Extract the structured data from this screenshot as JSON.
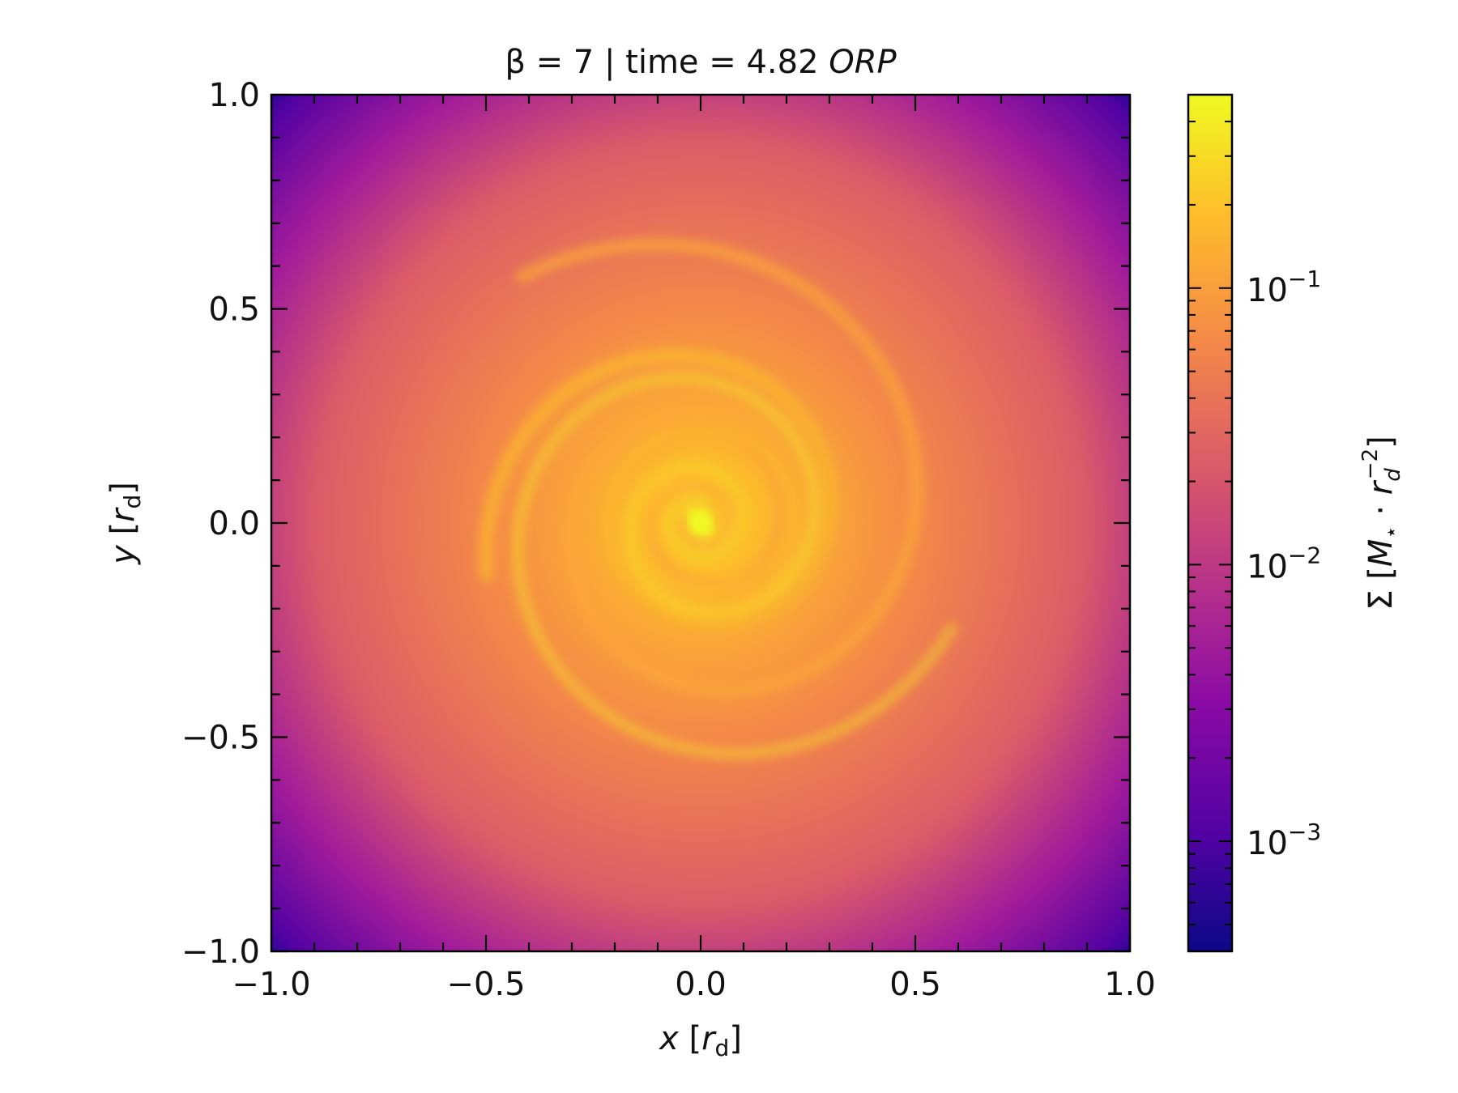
{
  "chart_data": {
    "type": "heatmap",
    "title": {
      "prefix": "β = 7 | time = 4.82 ",
      "suffix": "ORP"
    },
    "xlabel": {
      "var": "x",
      "unit": "r",
      "sub": "d"
    },
    "ylabel": {
      "var": "y",
      "unit": "r",
      "sub": "d"
    },
    "xlim": [
      -1.0,
      1.0
    ],
    "ylim": [
      -1.0,
      1.0
    ],
    "xticks": [
      -1.0,
      -0.5,
      0.0,
      0.5,
      1.0
    ],
    "yticks": [
      -1.0,
      -0.5,
      0.0,
      0.5,
      1.0
    ],
    "xtick_labels": [
      "−1.0",
      "−0.5",
      "0.0",
      "0.5",
      "1.0"
    ],
    "ytick_labels": [
      "−1.0",
      "−0.5",
      "0.0",
      "0.5",
      "1.0"
    ],
    "colorbar": {
      "label": "Σ [M⋆ · r_d^−2]",
      "scale": "log",
      "colormap": "plasma",
      "range": [
        0.0004,
        0.5
      ],
      "ticks": [
        0.001,
        0.01,
        0.1
      ],
      "tick_labels": [
        {
          "base": "10",
          "exp": "−3"
        },
        {
          "base": "10",
          "exp": "−2"
        },
        {
          "base": "10",
          "exp": "−1"
        }
      ]
    },
    "grid": false,
    "colors": {
      "plasma_stops": [
        "#0d0887",
        "#5302a3",
        "#8b0aa5",
        "#b83289",
        "#db5c68",
        "#f48849",
        "#febd2a",
        "#f0f921"
      ]
    }
  }
}
